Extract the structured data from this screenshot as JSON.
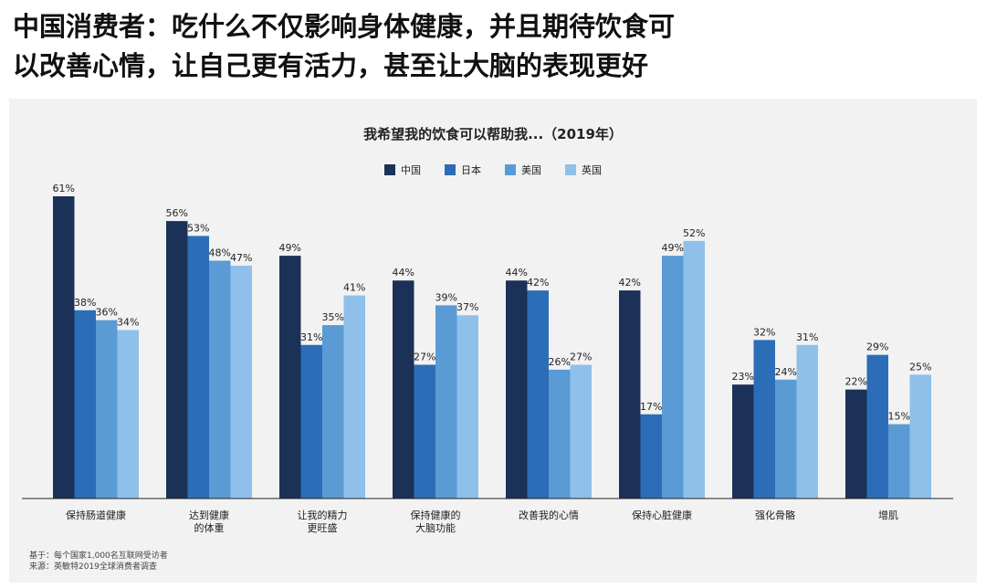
{
  "headline": {
    "line1": "中国消费者：吃什么不仅影响身体健康，并且期待饮食可",
    "line2": "以改善心情，让自己更有活力，甚至让大脑的表现更好"
  },
  "chart_data": {
    "type": "bar",
    "title": "我希望我的饮食可以帮助我...（2019年）",
    "categories": [
      [
        "保持肠道健康"
      ],
      [
        "达到健康",
        "的体重"
      ],
      [
        "让我的精力",
        "更旺盛"
      ],
      [
        "保持健康的",
        "大脑功能"
      ],
      [
        "改善我的心情"
      ],
      [
        "保持心脏健康"
      ],
      [
        "强化骨骼"
      ],
      [
        "增肌"
      ]
    ],
    "series": [
      {
        "name": "中国",
        "color": "#1c3157",
        "values": [
          61,
          56,
          49,
          44,
          44,
          42,
          23,
          22
        ]
      },
      {
        "name": "日本",
        "color": "#2c6db7",
        "values": [
          38,
          53,
          31,
          27,
          42,
          17,
          32,
          29
        ]
      },
      {
        "name": "美国",
        "color": "#5a9bd5",
        "values": [
          36,
          48,
          35,
          39,
          26,
          49,
          24,
          15
        ]
      },
      {
        "name": "英国",
        "color": "#8fc0ea",
        "values": [
          34,
          47,
          41,
          37,
          27,
          52,
          31,
          25
        ]
      }
    ],
    "value_suffix": "%",
    "ylim": [
      0,
      61
    ],
    "legend_position": "top-center",
    "grid": false
  },
  "source": {
    "line1": "基于：每个国家1,000名互联网受访者",
    "line2": "来源：英敏特2019全球消费者调查"
  }
}
